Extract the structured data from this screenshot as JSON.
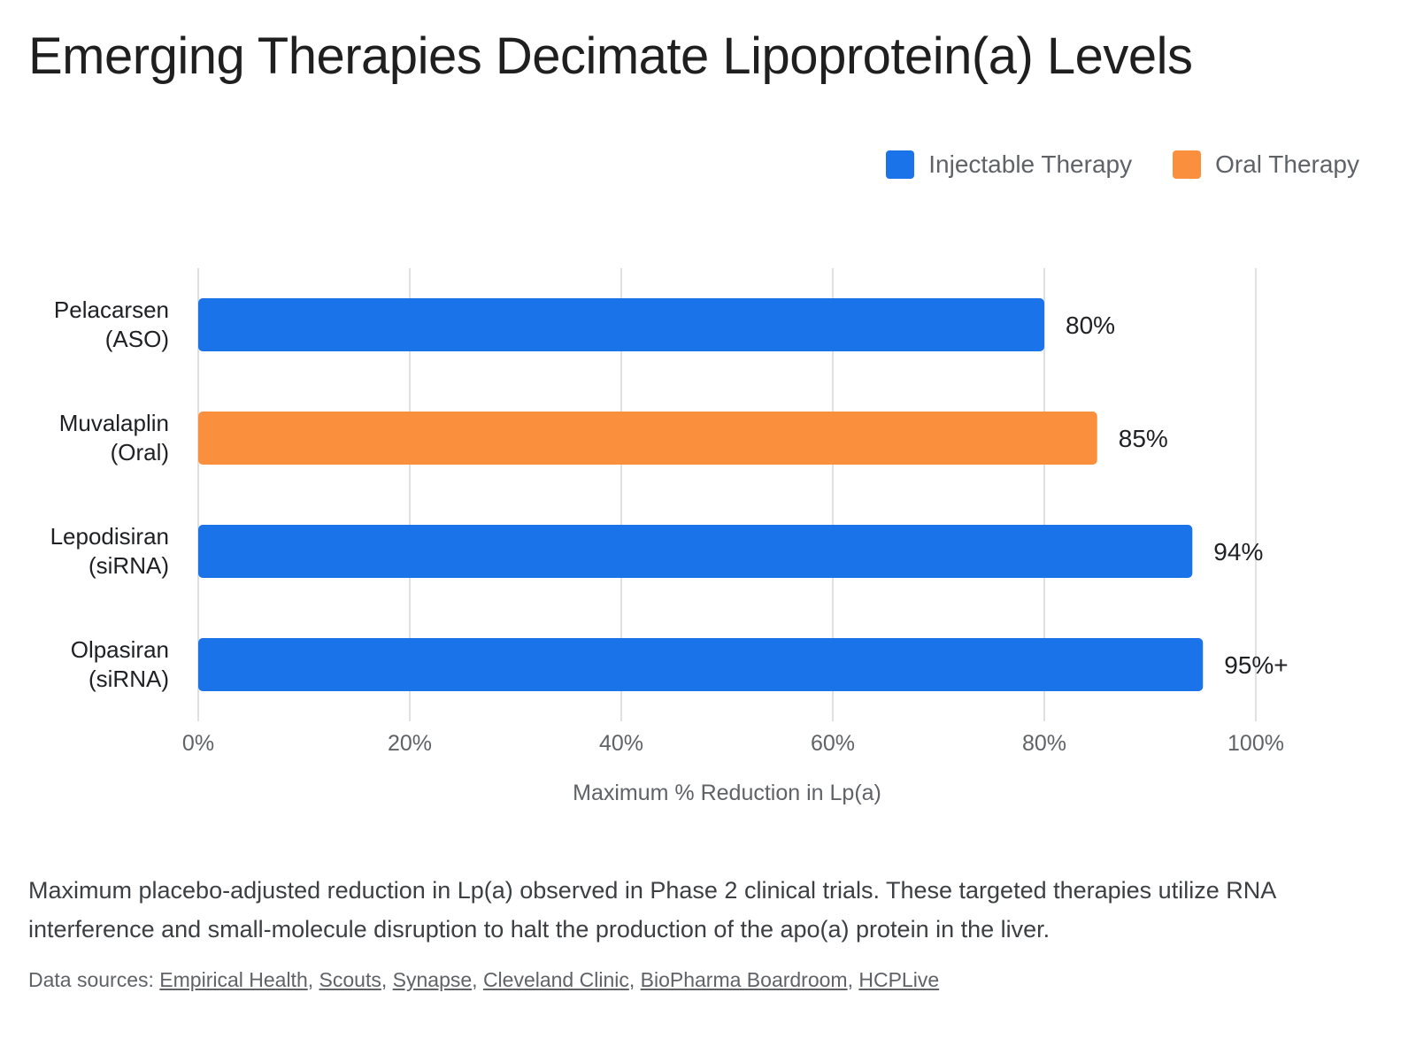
{
  "title": "Emerging Therapies Decimate Lipoprotein(a) Levels",
  "legend": [
    {
      "label": "Injectable Therapy",
      "color": "#1a73e8"
    },
    {
      "label": "Oral Therapy",
      "color": "#fa903e"
    }
  ],
  "chart_data": {
    "type": "bar",
    "orientation": "horizontal",
    "categories": [
      {
        "line1": "Pelacarsen",
        "line2": "(ASO)"
      },
      {
        "line1": "Muvalaplin",
        "line2": "(Oral)"
      },
      {
        "line1": "Lepodisiran",
        "line2": "(siRNA)"
      },
      {
        "line1": "Olpasiran",
        "line2": "(siRNA)"
      }
    ],
    "values": [
      80,
      85,
      94,
      95
    ],
    "value_labels": [
      "80%",
      "85%",
      "94%",
      "95%+"
    ],
    "bar_series": [
      "Injectable Therapy",
      "Oral Therapy",
      "Injectable Therapy",
      "Injectable Therapy"
    ],
    "xlabel": "Maximum % Reduction in Lp(a)",
    "xlim": [
      0,
      100
    ],
    "xticks": [
      0,
      20,
      40,
      60,
      80,
      100
    ],
    "xtick_labels": [
      "0%",
      "20%",
      "40%",
      "60%",
      "80%",
      "100%"
    ],
    "grid": "vertical",
    "legend_position": "top-right"
  },
  "caption": "Maximum placebo-adjusted reduction in Lp(a) observed in Phase 2 clinical trials. These targeted therapies utilize RNA interference and small-molecule disruption to halt the production of the apo(a) protein in the liver.",
  "sources": {
    "prefix": "Data sources:",
    "links": [
      "Empirical Health",
      "Scouts",
      "Synapse",
      "Cleveland Clinic",
      "BioPharma Boardroom",
      "HCPLive"
    ]
  }
}
